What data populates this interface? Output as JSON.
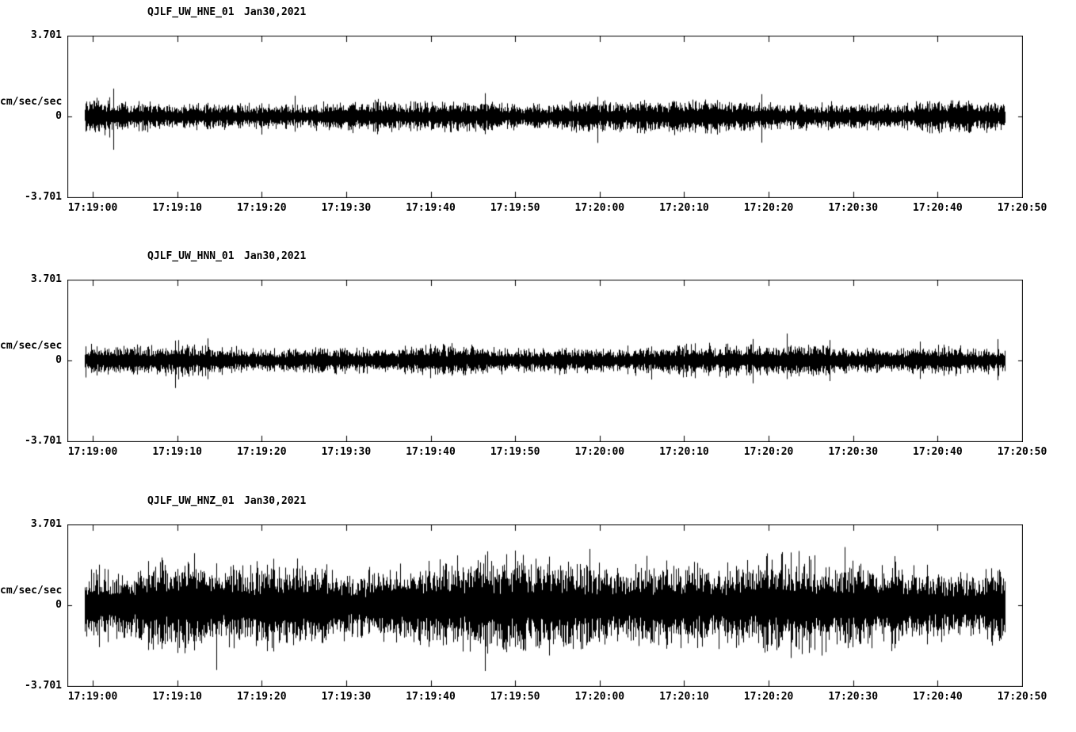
{
  "colors": {
    "background": "#ffffff",
    "trace": "#000000",
    "axis": "#000000"
  },
  "chart_data": [
    {
      "type": "line",
      "title": "QJLF_UW_HNE_01",
      "date_label": "Jan30,2021",
      "ylabel": "cm/sec/sec",
      "ylim": [
        -3.701,
        3.701
      ],
      "ytick_labels": [
        "3.701",
        "0",
        "-3.701"
      ],
      "x_tick_labels": [
        "17:19:00",
        "17:19:10",
        "17:19:20",
        "17:19:30",
        "17:19:40",
        "17:19:50",
        "17:20:00",
        "17:20:10",
        "17:20:20",
        "17:20:30",
        "17:20:40",
        "17:20:50"
      ],
      "grid": false,
      "legend": false,
      "series": [
        {
          "name": "QJLF_UW_HNE_01",
          "kind": "seismic-noise-waveform",
          "approx_amplitude_rms": 0.3,
          "approx_amplitude_peak": 1.6
        }
      ]
    },
    {
      "type": "line",
      "title": "QJLF_UW_HNN_01",
      "date_label": "Jan30,2021",
      "ylabel": "cm/sec/sec",
      "ylim": [
        -3.701,
        3.701
      ],
      "ytick_labels": [
        "3.701",
        "0",
        "-3.701"
      ],
      "x_tick_labels": [
        "17:19:00",
        "17:19:10",
        "17:19:20",
        "17:19:30",
        "17:19:40",
        "17:19:50",
        "17:20:00",
        "17:20:10",
        "17:20:20",
        "17:20:30",
        "17:20:40",
        "17:20:50"
      ],
      "grid": false,
      "legend": false,
      "series": [
        {
          "name": "QJLF_UW_HNN_01",
          "kind": "seismic-noise-waveform",
          "approx_amplitude_rms": 0.28,
          "approx_amplitude_peak": 1.5
        }
      ]
    },
    {
      "type": "line",
      "title": "QJLF_UW_HNZ_01",
      "date_label": "Jan30,2021",
      "ylabel": "cm/sec/sec",
      "ylim": [
        -3.701,
        3.701
      ],
      "ytick_labels": [
        "3.701",
        "0",
        "-3.701"
      ],
      "x_tick_labels": [
        "17:19:00",
        "17:19:10",
        "17:19:20",
        "17:19:30",
        "17:19:40",
        "17:19:50",
        "17:20:00",
        "17:20:10",
        "17:20:20",
        "17:20:30",
        "17:20:40",
        "17:20:50"
      ],
      "grid": false,
      "legend": false,
      "series": [
        {
          "name": "QJLF_UW_HNZ_01",
          "kind": "seismic-noise-waveform",
          "approx_amplitude_rms": 0.85,
          "approx_amplitude_peak": 3.2
        }
      ]
    }
  ]
}
